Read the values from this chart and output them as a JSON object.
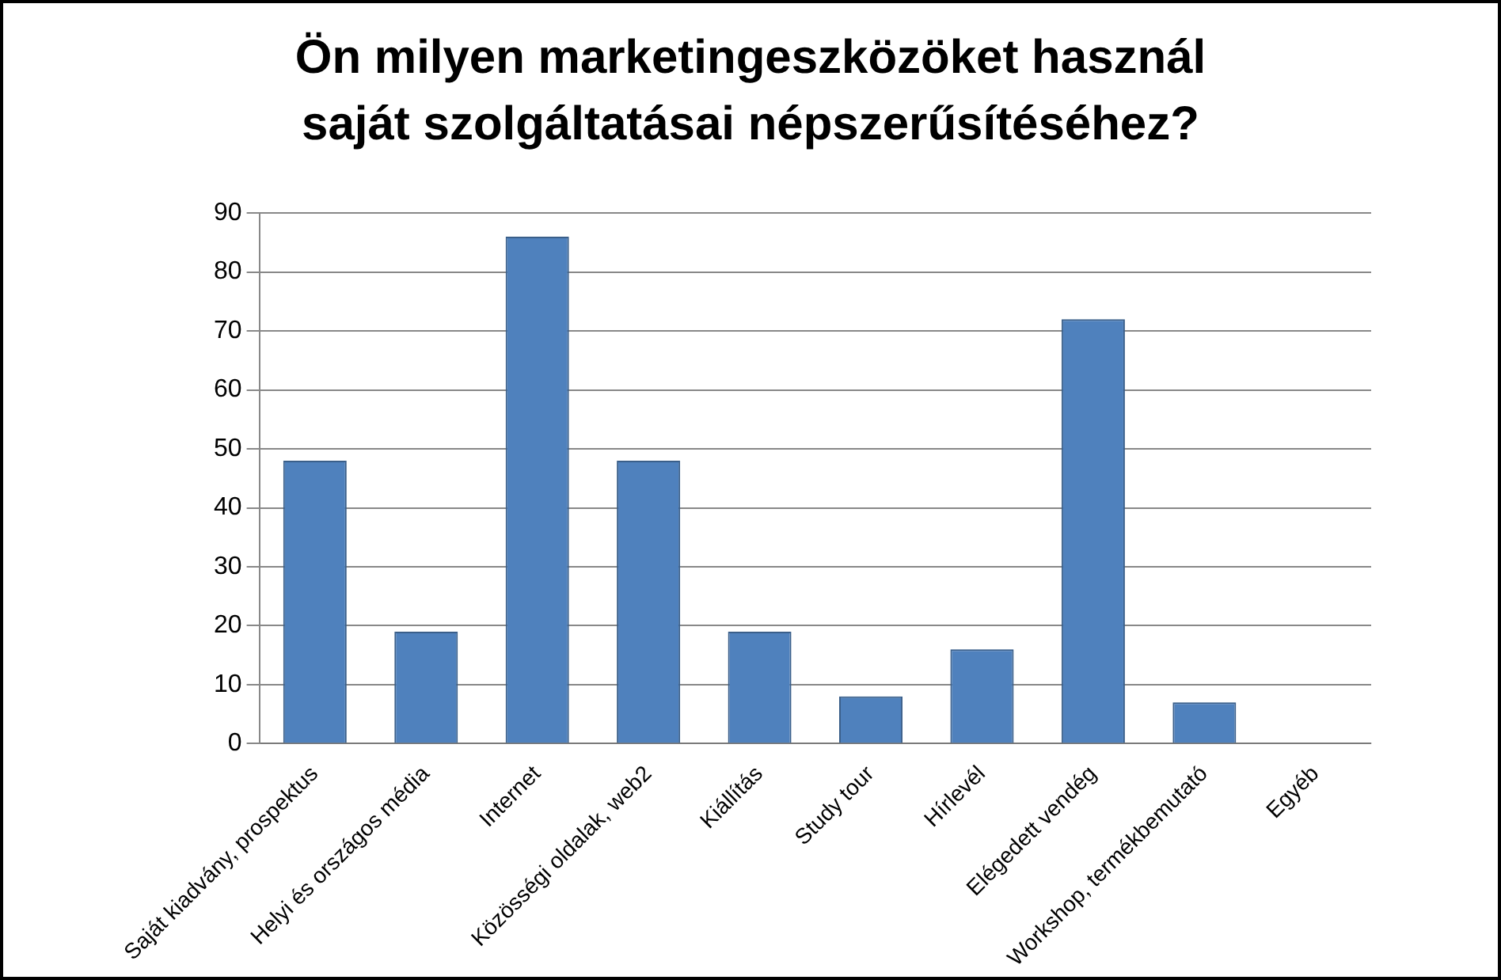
{
  "chart_data": {
    "type": "bar",
    "title": "Ön milyen marketingeszközöket használ saját szolgáltatásai népszerűsítéséhez?",
    "categories": [
      "Saját kiadvány, prospektus",
      "Helyi és országos média",
      "Internet",
      "Közösségi oldalak, web2",
      "Kiállítás",
      "Study tour",
      "Hírlevél",
      "Elégedett vendég",
      "Workshop, termékbemutató",
      "Egyéb"
    ],
    "values": [
      48,
      19,
      86,
      48,
      19,
      8,
      16,
      72,
      7,
      0
    ],
    "color": "#4f81bd",
    "ylim": [
      0,
      90
    ],
    "yticks": [
      0,
      10,
      20,
      30,
      40,
      50,
      60,
      70,
      80,
      90
    ],
    "grid": "y",
    "legend": false
  }
}
